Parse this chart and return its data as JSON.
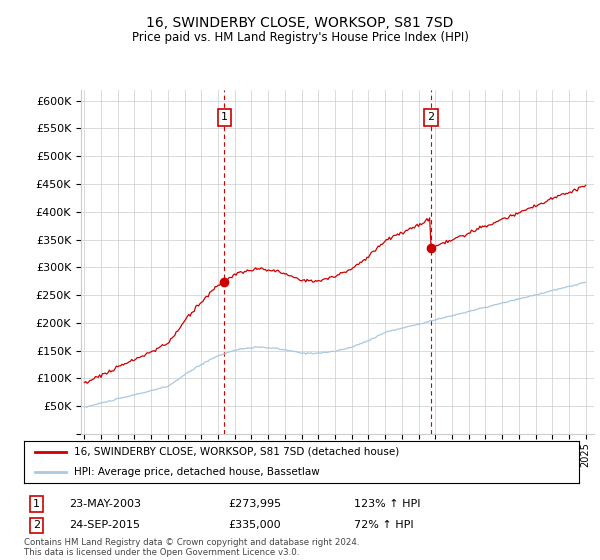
{
  "title": "16, SWINDERBY CLOSE, WORKSOP, S81 7SD",
  "subtitle": "Price paid vs. HM Land Registry's House Price Index (HPI)",
  "legend_line1": "16, SWINDERBY CLOSE, WORKSOP, S81 7SD (detached house)",
  "legend_line2": "HPI: Average price, detached house, Bassetlaw",
  "annotation1_label": "1",
  "annotation1_date": "23-MAY-2003",
  "annotation1_price": "£273,995",
  "annotation1_hpi": "123% ↑ HPI",
  "annotation2_label": "2",
  "annotation2_date": "24-SEP-2015",
  "annotation2_price": "£335,000",
  "annotation2_hpi": "72% ↑ HPI",
  "footer": "Contains HM Land Registry data © Crown copyright and database right 2024.\nThis data is licensed under the Open Government Licence v3.0.",
  "ylim": [
    0,
    620000
  ],
  "yticks": [
    0,
    50000,
    100000,
    150000,
    200000,
    250000,
    300000,
    350000,
    400000,
    450000,
    500000,
    550000,
    600000
  ],
  "sale1_year": 2003.38,
  "sale1_value": 273995,
  "sale2_year": 2015.73,
  "sale2_value": 335000,
  "background_color": "#ffffff",
  "grid_color": "#cccccc",
  "hpi_line_color": "#aac8e0",
  "price_line_color": "#cc0000",
  "vline_color": "#cc0000"
}
